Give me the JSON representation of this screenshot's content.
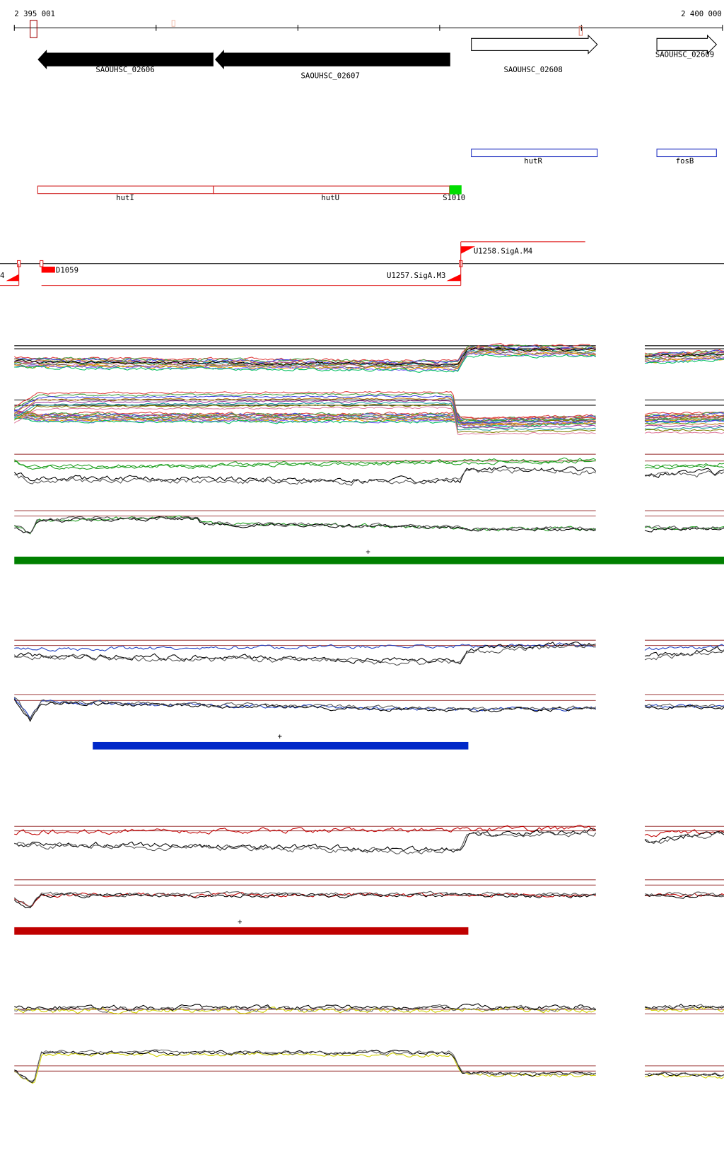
{
  "axis": {
    "start": "2 395 001",
    "end": "2 400 000"
  },
  "genes": [
    {
      "label": "SAOUHSC_02606"
    },
    {
      "label": "SAOUHSC_02607"
    },
    {
      "label": "SAOUHSC_02608"
    },
    {
      "label": "SAOUHSC_02609"
    }
  ],
  "features": [
    {
      "label": "hutR"
    },
    {
      "label": "fosB"
    },
    {
      "label": "hutI"
    },
    {
      "label": "hutU"
    },
    {
      "label": "S1010"
    }
  ],
  "transcripts": [
    {
      "label": "U1258.SigA.M4"
    },
    {
      "label": "D1059"
    },
    {
      "label": "U1257.SigA.M3"
    },
    {
      "label": "4"
    }
  ],
  "markers": [
    "+",
    "+",
    "+"
  ]
}
